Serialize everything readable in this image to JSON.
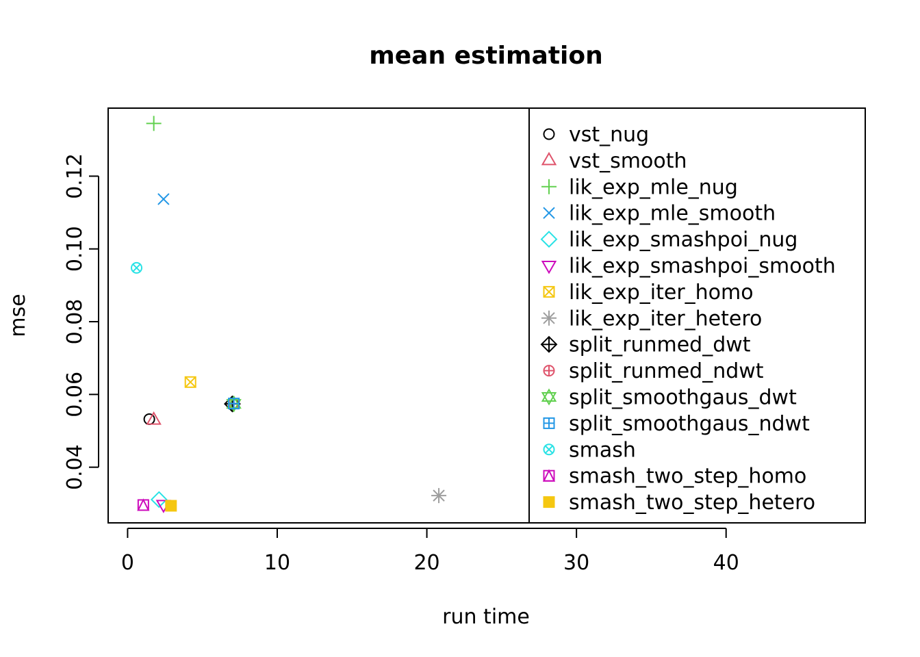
{
  "chart_data": {
    "type": "scatter",
    "title": "mean estimation",
    "xlabel": "run time",
    "ylabel": "mse",
    "xlim": [
      -1.3,
      49.3
    ],
    "ylim": [
      0.0247,
      0.1387
    ],
    "xticks": [
      0,
      10,
      20,
      30,
      40
    ],
    "yticks": [
      0.04,
      0.06,
      0.08,
      0.1,
      0.12
    ],
    "ytick_labels": [
      "0.04",
      "0.06",
      "0.08",
      "0.10",
      "0.12"
    ],
    "xtick_labels": [
      "0",
      "10",
      "20",
      "30",
      "40"
    ],
    "grid": false,
    "legend_position": "right inside plot",
    "series": [
      {
        "name": "vst_nug",
        "symbol": "circle",
        "color": "#000000",
        "x": 1.45,
        "y": 0.0532
      },
      {
        "name": "vst_smooth",
        "symbol": "triangle-up",
        "color": "#DF536B",
        "x": 1.75,
        "y": 0.053
      },
      {
        "name": "lik_exp_mle_nug",
        "symbol": "plus",
        "color": "#61D04F",
        "x": 1.75,
        "y": 0.1345
      },
      {
        "name": "lik_exp_mle_smooth",
        "symbol": "cross",
        "color": "#2297E6",
        "x": 2.4,
        "y": 0.1137
      },
      {
        "name": "lik_exp_smashpoi_nug",
        "symbol": "diamond",
        "color": "#28E2E5",
        "x": 2.1,
        "y": 0.0311
      },
      {
        "name": "lik_exp_smashpoi_smooth",
        "symbol": "triangle-down",
        "color": "#CD0BBC",
        "x": 2.4,
        "y": 0.0297
      },
      {
        "name": "lik_exp_iter_homo",
        "symbol": "square-cross",
        "color": "#F5C710",
        "x": 4.2,
        "y": 0.0634
      },
      {
        "name": "lik_exp_iter_hetero",
        "symbol": "asterisk",
        "color": "#9E9E9E",
        "x": 20.8,
        "y": 0.0322
      },
      {
        "name": "split_runmed_dwt",
        "symbol": "diamond-plus",
        "color": "#000000",
        "x": 7.0,
        "y": 0.0574
      },
      {
        "name": "split_runmed_ndwt",
        "symbol": "circle-plus",
        "color": "#DF536B",
        "x": 7.1,
        "y": 0.0575
      },
      {
        "name": "split_smoothgaus_dwt",
        "symbol": "star-of-david",
        "color": "#61D04F",
        "x": 7.1,
        "y": 0.0574
      },
      {
        "name": "split_smoothgaus_ndwt",
        "symbol": "square-plus",
        "color": "#2297E6",
        "x": 7.1,
        "y": 0.0575
      },
      {
        "name": "smash",
        "symbol": "circle-cross",
        "color": "#28E2E5",
        "x": 0.6,
        "y": 0.0948
      },
      {
        "name": "smash_two_step_homo",
        "symbol": "square-triangle",
        "color": "#CD0BBC",
        "x": 1.05,
        "y": 0.0296
      },
      {
        "name": "smash_two_step_hetero",
        "symbol": "filled-square",
        "color": "#F5C710",
        "x": 2.9,
        "y": 0.0294
      }
    ]
  }
}
